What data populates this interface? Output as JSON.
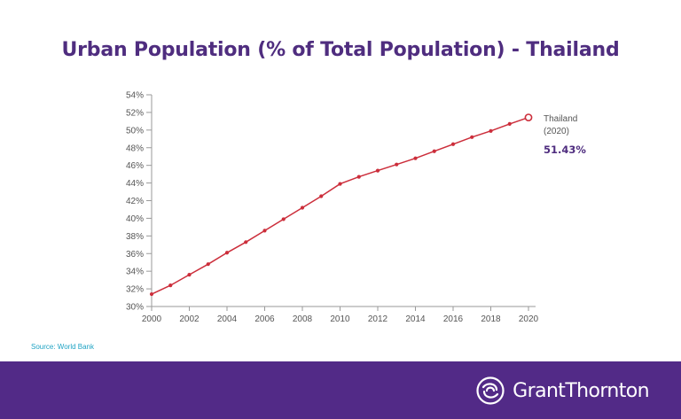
{
  "chart_data": {
    "type": "line",
    "title": "Urban Population (% of Total Population) - Thailand",
    "xlabel": "",
    "ylabel": "",
    "x": [
      2000,
      2001,
      2002,
      2003,
      2004,
      2005,
      2006,
      2007,
      2008,
      2009,
      2010,
      2011,
      2012,
      2013,
      2014,
      2015,
      2016,
      2017,
      2018,
      2019,
      2020
    ],
    "series": [
      {
        "name": "Thailand",
        "values": [
          31.4,
          32.4,
          33.6,
          34.8,
          36.1,
          37.3,
          38.6,
          39.9,
          41.2,
          42.5,
          43.9,
          44.7,
          45.4,
          46.1,
          46.8,
          47.6,
          48.4,
          49.2,
          49.9,
          50.7,
          51.43
        ],
        "color": "#cc2e3b"
      }
    ],
    "ylim": [
      30,
      54
    ],
    "xlim": [
      2000,
      2020
    ],
    "y_ticks": [
      "30%",
      "32%",
      "34%",
      "36%",
      "38%",
      "40%",
      "42%",
      "44%",
      "46%",
      "48%",
      "50%",
      "52%",
      "54%"
    ],
    "x_ticks": [
      "2000",
      "2002",
      "2004",
      "2006",
      "2008",
      "2010",
      "2012",
      "2014",
      "2016",
      "2018",
      "2020"
    ],
    "grid": false,
    "annotation": {
      "label_line1": "Thailand",
      "label_line2": "(2020)",
      "value": "51.43%",
      "value_color": "#4f2d7f"
    }
  },
  "source": "Source: World Bank",
  "footer": {
    "brand": "GrantThornton",
    "background": "#522a87"
  }
}
